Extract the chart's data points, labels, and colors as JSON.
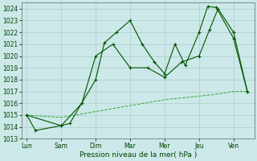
{
  "x_labels": [
    "Lun",
    "Sam",
    "Dim",
    "Mar",
    "Mer",
    "Jeu",
    "Ven"
  ],
  "x_positions": [
    0,
    1,
    2,
    3,
    4,
    5,
    6
  ],
  "xlim": [
    -0.15,
    6.6
  ],
  "line1_x": [
    0,
    0.25,
    1.0,
    1.25,
    2.0,
    2.25,
    2.6,
    3.0,
    3.35,
    3.7,
    4.0,
    4.3,
    4.6,
    5.0,
    5.25,
    5.5,
    6.0,
    6.4
  ],
  "line1_y": [
    1015.0,
    1013.7,
    1014.1,
    1014.3,
    1018.0,
    1021.1,
    1022.0,
    1023.0,
    1021.0,
    1019.5,
    1018.5,
    1021.0,
    1019.2,
    1022.0,
    1024.2,
    1024.1,
    1021.5,
    1017.0
  ],
  "line2_x": [
    0,
    1.0,
    1.6,
    2.0,
    2.5,
    3.0,
    3.5,
    4.0,
    4.5,
    5.0,
    5.3,
    5.55,
    6.0,
    6.4
  ],
  "line2_y": [
    1015.0,
    1014.1,
    1016.0,
    1020.0,
    1021.0,
    1019.0,
    1019.0,
    1018.2,
    1019.5,
    1020.0,
    1022.2,
    1024.0,
    1022.0,
    1017.0
  ],
  "line3_x": [
    0,
    1,
    2,
    3,
    4,
    5,
    5.6,
    6,
    6.4
  ],
  "line3_y": [
    1015.0,
    1014.8,
    1015.3,
    1015.8,
    1016.3,
    1016.6,
    1016.8,
    1017.0,
    1017.0
  ],
  "ylim": [
    1013,
    1024.5
  ],
  "yticks": [
    1013,
    1014,
    1015,
    1016,
    1017,
    1018,
    1019,
    1020,
    1021,
    1022,
    1023,
    1024
  ],
  "xlabel": "Pression niveau de la mer( hPa )",
  "bg_color": "#cce8e8",
  "grid_color": "#aacccc",
  "line_color1": "#005500",
  "line_color2": "#005500",
  "line_color3": "#33aa33",
  "marker_color": "#005500",
  "tick_color": "#005500",
  "label_color": "#004400"
}
